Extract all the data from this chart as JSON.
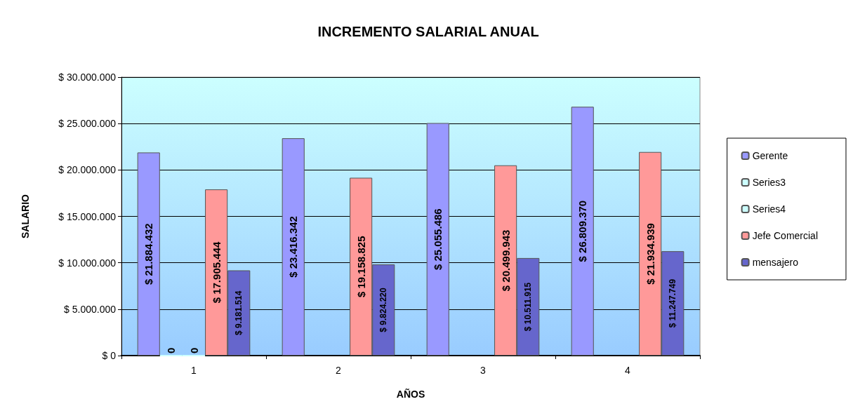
{
  "chart_data": {
    "type": "bar",
    "title": "INCREMENTO SALARIAL ANUAL",
    "xlabel": "AÑOS",
    "ylabel": "SALARIO",
    "categories": [
      "1",
      "2",
      "3",
      "4"
    ],
    "series": [
      {
        "name": "Gerente",
        "color": "#9999ff",
        "values": [
          21884432,
          23416342,
          25055486,
          26809370
        ],
        "value_labels": [
          "$ 21.884.432",
          "$ 23.416.342",
          "$ 25.055.486",
          "$ 26.809.370"
        ]
      },
      {
        "name": "Series3",
        "color": "#ccffff",
        "values": [
          0,
          null,
          null,
          null
        ],
        "value_labels": [
          "0",
          null,
          null,
          null
        ]
      },
      {
        "name": "Series4",
        "color": "#ccffff",
        "values": [
          0,
          null,
          null,
          null
        ],
        "value_labels": [
          "0",
          null,
          null,
          null
        ]
      },
      {
        "name": "Jefe Comercial",
        "color": "#ff9999",
        "values": [
          17905444,
          19158825,
          20499943,
          21934939
        ],
        "value_labels": [
          "$ 17.905.444",
          "$ 19.158.825",
          "$ 20.499.943",
          "$ 21.934.939"
        ]
      },
      {
        "name": "mensajero",
        "color": "#6666cc",
        "values": [
          9181514,
          9824220,
          10511915,
          11247749
        ],
        "value_labels": [
          "$ 9.181.514",
          "$ 9.824.220",
          "$ 10.511.915",
          "$ 11.247.749"
        ]
      }
    ],
    "ylim": [
      0,
      30000000
    ],
    "yticks": [
      {
        "value": 0,
        "label": "$ 0"
      },
      {
        "value": 5000000,
        "label": "$ 5.000.000"
      },
      {
        "value": 10000000,
        "label": "$ 10.000.000"
      },
      {
        "value": 15000000,
        "label": "$ 15.000.000"
      },
      {
        "value": 20000000,
        "label": "$ 20.000.000"
      },
      {
        "value": 25000000,
        "label": "$ 25.000.000"
      },
      {
        "value": 30000000,
        "label": "$ 30.000.000"
      }
    ],
    "grid": true,
    "legend": "right"
  }
}
